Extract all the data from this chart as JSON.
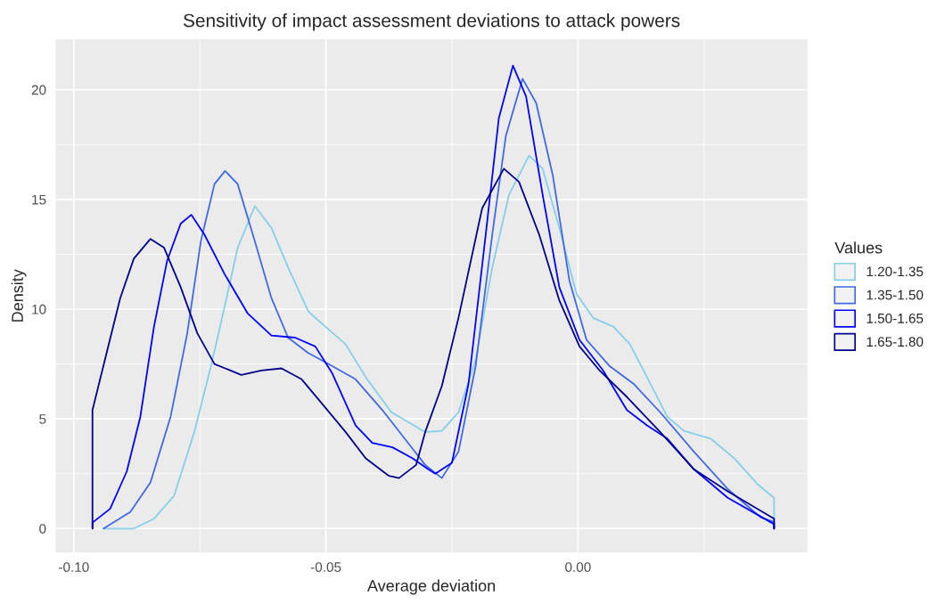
{
  "chart_data": {
    "type": "line",
    "title": "Sensitivity of impact assessment deviations to attack powers",
    "xlabel": "Average deviation",
    "ylabel": "Density",
    "legend_title": "Values",
    "legend": "right",
    "grid": true,
    "marker": "none",
    "line_style": "solid",
    "xlim": [
      -0.1036,
      0.0455
    ],
    "ylim": [
      -1.1,
      22.3
    ],
    "xticks": [
      {
        "value": -0.1,
        "label": "-0.10"
      },
      {
        "value": -0.05,
        "label": "-0.05"
      },
      {
        "value": 0,
        "label": "0.00"
      }
    ],
    "yticks": [
      0,
      5,
      10,
      15,
      20
    ],
    "series": [
      {
        "name": "1.20-1.35",
        "color": "#87ceeb",
        "x": [
          -0.0941,
          -0.0881,
          -0.0841,
          -0.0801,
          -0.0761,
          -0.0728,
          -0.0701,
          -0.0675,
          -0.0641,
          -0.0608,
          -0.0575,
          -0.0535,
          -0.0501,
          -0.0461,
          -0.0421,
          -0.037,
          -0.0303,
          -0.027,
          -0.0237,
          -0.0203,
          -0.017,
          -0.0137,
          -0.0097,
          -0.007,
          -0.0037,
          -0.0003,
          0.003,
          0.007,
          0.0103,
          0.0137,
          0.0177,
          0.021,
          0.0263,
          0.031,
          0.0357,
          0.0389,
          0.0389
        ],
        "values": [
          0,
          0,
          0.45,
          1.5,
          4.4,
          7.4,
          10.1,
          12.8,
          14.7,
          13.7,
          11.9,
          9.9,
          9.2,
          8.4,
          6.9,
          5.3,
          4.4,
          4.45,
          5.3,
          7.7,
          11.9,
          15.2,
          17.0,
          16.4,
          13.7,
          10.7,
          9.6,
          9.2,
          8.4,
          6.9,
          5.1,
          4.45,
          4.1,
          3.2,
          2.0,
          1.4,
          0
        ]
      },
      {
        "name": "1.35-1.50",
        "color": "#4169e1",
        "x": [
          -0.0941,
          -0.0888,
          -0.0848,
          -0.0808,
          -0.0775,
          -0.0748,
          -0.0721,
          -0.07,
          -0.0675,
          -0.0641,
          -0.0608,
          -0.0575,
          -0.0535,
          -0.0495,
          -0.0441,
          -0.0388,
          -0.0337,
          -0.0303,
          -0.027,
          -0.0237,
          -0.0203,
          -0.017,
          -0.0143,
          -0.011,
          -0.0083,
          -0.005,
          -0.0017,
          0.0017,
          0.0063,
          0.011,
          0.0163,
          0.023,
          0.0297,
          0.0363,
          0.0389,
          0.0389
        ],
        "values": [
          0,
          0.75,
          2.1,
          5.1,
          8.9,
          13.1,
          15.7,
          16.3,
          15.7,
          13.1,
          10.5,
          8.7,
          8.0,
          7.5,
          6.8,
          5.4,
          3.9,
          2.9,
          2.3,
          3.5,
          7.4,
          13.4,
          17.9,
          20.5,
          19.4,
          16.1,
          11.3,
          8.6,
          7.4,
          6.6,
          5.3,
          3.5,
          1.8,
          0.5,
          0.3,
          0
        ]
      },
      {
        "name": "1.50-1.65",
        "color": "#0000ff",
        "x": [
          -0.0963,
          -0.0963,
          -0.0928,
          -0.0895,
          -0.0868,
          -0.0841,
          -0.0815,
          -0.0788,
          -0.0767,
          -0.0741,
          -0.0701,
          -0.0655,
          -0.0608,
          -0.0561,
          -0.0521,
          -0.0488,
          -0.0441,
          -0.0408,
          -0.0368,
          -0.0328,
          -0.0297,
          -0.0283,
          -0.025,
          -0.0217,
          -0.0183,
          -0.0157,
          -0.0129,
          -0.0103,
          -0.007,
          -0.0037,
          0.0003,
          0.005,
          0.0097,
          0.0137,
          0.0177,
          0.023,
          0.0297,
          0.0389,
          0.0389
        ],
        "values": [
          0,
          0.27,
          0.9,
          2.6,
          5.1,
          9.2,
          12.2,
          13.9,
          14.3,
          13.4,
          11.6,
          9.8,
          8.8,
          8.7,
          8.3,
          7.1,
          4.7,
          3.9,
          3.7,
          3.2,
          2.7,
          2.5,
          3.0,
          6.6,
          13.4,
          18.7,
          21.1,
          19.7,
          15.2,
          11.0,
          8.6,
          7.2,
          5.4,
          4.7,
          4.1,
          2.7,
          1.4,
          0.2,
          0
        ]
      },
      {
        "name": "1.65-1.80",
        "color": "#00008b",
        "x": [
          -0.0963,
          -0.0963,
          -0.0935,
          -0.0908,
          -0.0881,
          -0.0848,
          -0.0821,
          -0.0788,
          -0.0755,
          -0.0721,
          -0.0668,
          -0.0628,
          -0.0588,
          -0.0548,
          -0.0508,
          -0.0461,
          -0.0421,
          -0.0375,
          -0.0355,
          -0.0321,
          -0.0303,
          -0.027,
          -0.0237,
          -0.019,
          -0.0147,
          -0.0117,
          -0.0077,
          -0.0037,
          0.0003,
          0.0043,
          0.0097,
          0.0163,
          0.023,
          0.0297,
          0.0389,
          0.0389
        ],
        "values": [
          0,
          5.4,
          8.0,
          10.5,
          12.3,
          13.2,
          12.8,
          11.0,
          8.9,
          7.5,
          7.0,
          7.2,
          7.3,
          6.8,
          5.7,
          4.4,
          3.2,
          2.4,
          2.3,
          2.9,
          4.4,
          6.5,
          9.6,
          14.6,
          16.4,
          15.8,
          13.4,
          10.4,
          8.3,
          7.2,
          6.0,
          4.4,
          2.7,
          1.7,
          0.45,
          0
        ]
      }
    ]
  }
}
